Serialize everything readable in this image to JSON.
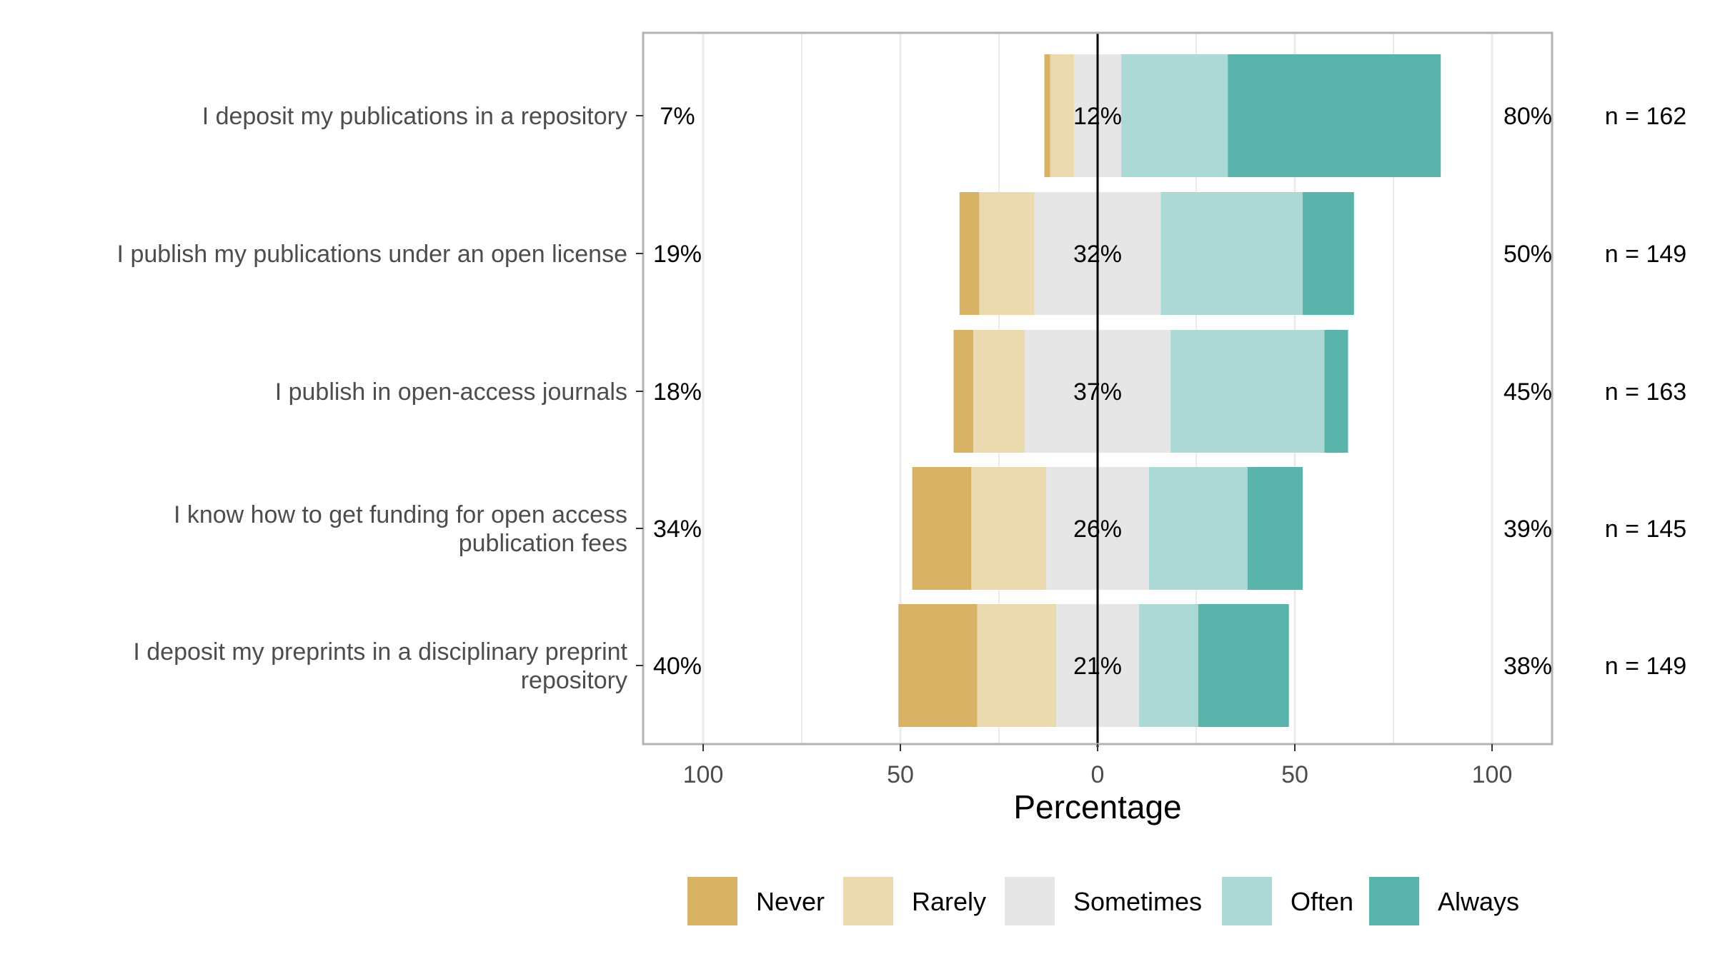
{
  "chart_data": {
    "type": "bar",
    "orientation": "horizontal",
    "stacking": "diverging",
    "categories": [
      "I deposit my publications in a repository",
      "I publish my publications under an open license",
      "I publish in open-access journals",
      "I know how to get funding for open access publication fees",
      "I deposit my preprints in a disciplinary preprint repository"
    ],
    "category_lines": [
      [
        "I deposit my publications in a repository"
      ],
      [
        "I publish my publications under an open license"
      ],
      [
        "I publish in open-access journals"
      ],
      [
        "I know how to get funding for open access",
        "publication fees"
      ],
      [
        "I deposit my preprints in a disciplinary preprint",
        "repository"
      ]
    ],
    "series": [
      {
        "name": "Never",
        "color": "#d8b365",
        "values": [
          1.5,
          5,
          5,
          15,
          20
        ]
      },
      {
        "name": "Rarely",
        "color": "#ebdab0",
        "values": [
          6,
          14,
          13,
          19,
          20
        ]
      },
      {
        "name": "Sometimes",
        "color": "#e6e6e6",
        "values": [
          12,
          32,
          37,
          26,
          21
        ]
      },
      {
        "name": "Often",
        "color": "#acd9d5",
        "values": [
          27,
          36,
          39,
          25,
          15
        ]
      },
      {
        "name": "Always",
        "color": "#5ab4ac",
        "values": [
          54,
          13,
          6,
          14,
          23
        ]
      }
    ],
    "left_percent_labels": [
      "7%",
      "19%",
      "18%",
      "34%",
      "40%"
    ],
    "center_percent_labels": [
      "12%",
      "32%",
      "37%",
      "26%",
      "21%"
    ],
    "right_percent_labels": [
      "80%",
      "50%",
      "45%",
      "39%",
      "38%"
    ],
    "n_labels": [
      "n = 162",
      "n = 149",
      "n = 163",
      "n = 145",
      "n = 149"
    ],
    "xlabel": "Percentage",
    "xlim": [
      -100,
      100
    ],
    "x_ticks": [
      -100,
      -50,
      0,
      50,
      100
    ],
    "x_tick_labels": [
      "100",
      "50",
      "0",
      "50",
      "100"
    ],
    "grid": true,
    "legend_position": "bottom"
  }
}
